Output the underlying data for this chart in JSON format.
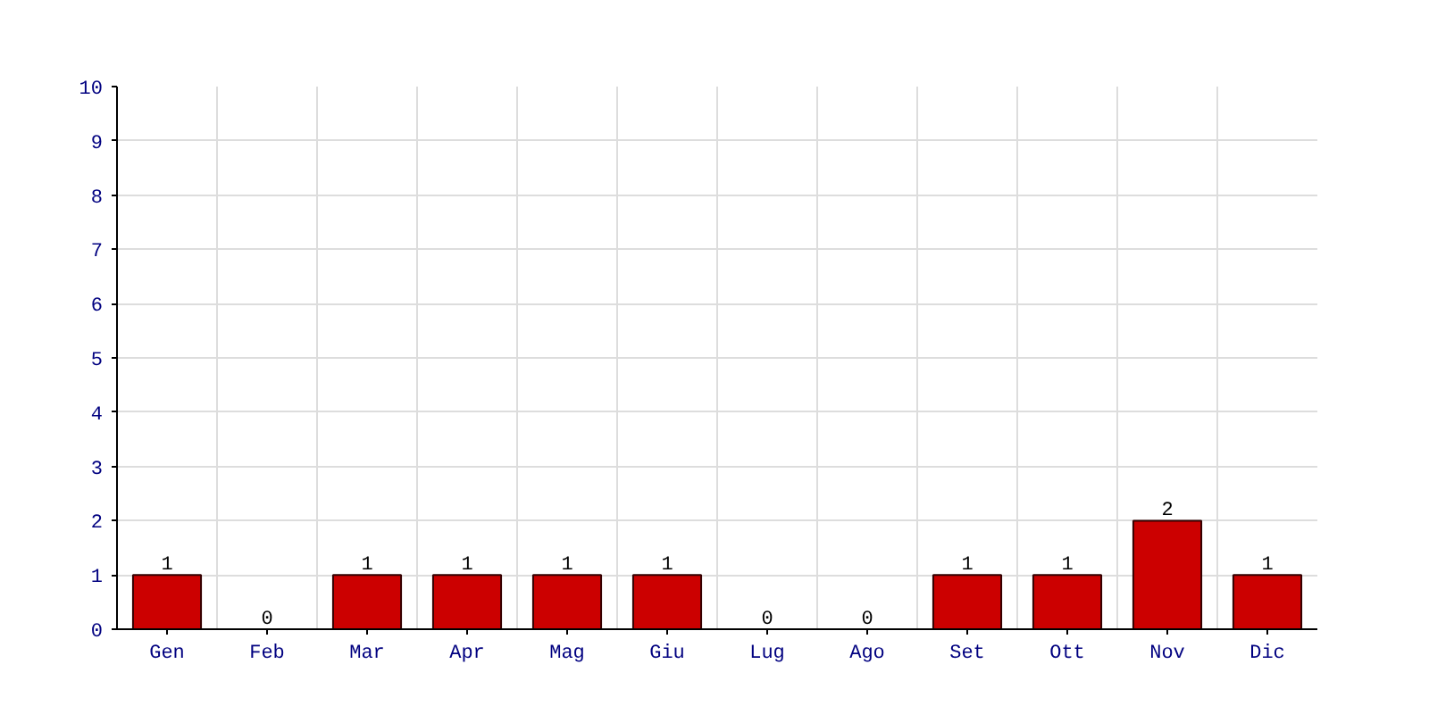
{
  "chart_data": {
    "type": "bar",
    "categories": [
      "Gen",
      "Feb",
      "Mar",
      "Apr",
      "Mag",
      "Giu",
      "Lug",
      "Ago",
      "Set",
      "Ott",
      "Nov",
      "Dic"
    ],
    "values": [
      1,
      0,
      1,
      1,
      1,
      1,
      0,
      0,
      1,
      1,
      2,
      1
    ],
    "color": "#cc0000",
    "ylim": [
      0,
      10
    ],
    "yticks": [
      0,
      1,
      2,
      3,
      4,
      5,
      6,
      7,
      8,
      9,
      10
    ],
    "grid": true,
    "data_labels": true
  }
}
